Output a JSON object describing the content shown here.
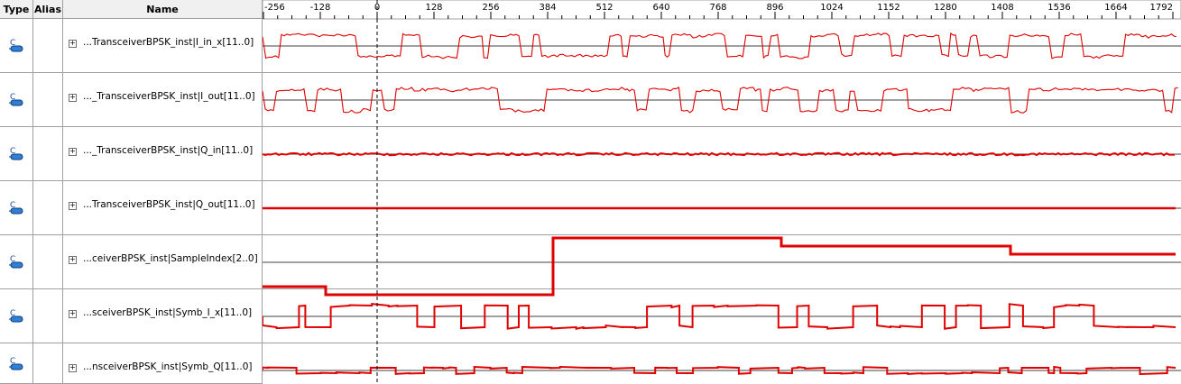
{
  "columns": {
    "type": "Type",
    "alias": "Alias",
    "name": "Name"
  },
  "timeline": {
    "ticks": [
      "-256",
      "-128",
      "0",
      "128",
      "256",
      "384",
      "512",
      "640",
      "768",
      "896",
      "1024",
      "1152",
      "1280",
      "1408",
      "1536",
      "1664",
      "1792"
    ],
    "min": -256,
    "max": 1792,
    "cursor": 0
  },
  "signals": [
    {
      "name": "...TransceiverBPSK_inst|I_in_x[11..0]",
      "icon": "signal-bus-icon"
    },
    {
      "name": "..._TransceiverBPSK_inst|I_out[11..0]",
      "icon": "signal-bus-icon"
    },
    {
      "name": "..._TransceiverBPSK_inst|Q_in[11..0]",
      "icon": "signal-bus-icon"
    },
    {
      "name": "...TransceiverBPSK_inst|Q_out[11..0]",
      "icon": "signal-bus-icon"
    },
    {
      "name": "...ceiverBPSK_inst|SampleIndex[2..0]",
      "icon": "signal-bus-icon"
    },
    {
      "name": "...sceiverBPSK_inst|Symb_I_x[11..0]",
      "icon": "signal-bus-icon"
    },
    {
      "name": "...nsceiverBPSK_inst|Symb_Q[11..0]",
      "icon": "signal-bus-icon"
    }
  ],
  "colors": {
    "wave": "#e00000",
    "axis": "#000000",
    "header_bg": "#f0f0f0",
    "grid": "#a0a0a0"
  }
}
